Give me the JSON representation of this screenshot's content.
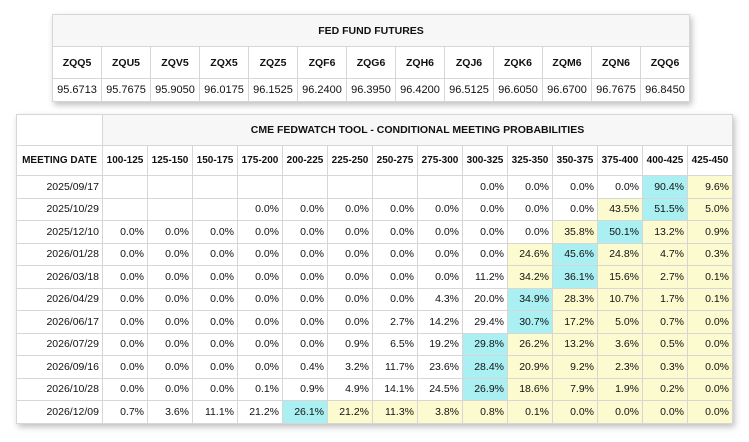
{
  "futures": {
    "title": "FED FUND FUTURES",
    "contracts": [
      "ZQQ5",
      "ZQU5",
      "ZQV5",
      "ZQX5",
      "ZQZ5",
      "ZQF6",
      "ZQG6",
      "ZQH6",
      "ZQJ6",
      "ZQK6",
      "ZQM6",
      "ZQN6",
      "ZQQ6"
    ],
    "prices": [
      "95.6713",
      "95.7675",
      "95.9050",
      "96.0175",
      "96.1525",
      "96.2400",
      "96.3950",
      "96.4200",
      "96.5125",
      "96.6050",
      "96.6700",
      "96.7675",
      "96.8450"
    ]
  },
  "probabilities": {
    "title": "CME FEDWATCH TOOL - CONDITIONAL MEETING PROBABILITIES",
    "date_header": "MEETING DATE",
    "ranges": [
      "100-125",
      "125-150",
      "150-175",
      "175-200",
      "200-225",
      "225-250",
      "250-275",
      "275-300",
      "300-325",
      "325-350",
      "350-375",
      "375-400",
      "400-425",
      "425-450"
    ],
    "colors": {
      "highlight": "#aaf0f2",
      "secondary": "#fbfbcf"
    },
    "rows": [
      {
        "date": "2025/09/17",
        "values": [
          "",
          "",
          "",
          "",
          "",
          "",
          "",
          "",
          "0.0%",
          "0.0%",
          "0.0%",
          "0.0%",
          "90.4%",
          "9.6%"
        ],
        "hi": [
          12
        ],
        "mid": [
          13
        ]
      },
      {
        "date": "2025/10/29",
        "values": [
          "",
          "",
          "",
          "0.0%",
          "0.0%",
          "0.0%",
          "0.0%",
          "0.0%",
          "0.0%",
          "0.0%",
          "0.0%",
          "43.5%",
          "51.5%",
          "5.0%"
        ],
        "hi": [
          12
        ],
        "mid": [
          11,
          13
        ]
      },
      {
        "date": "2025/12/10",
        "values": [
          "0.0%",
          "0.0%",
          "0.0%",
          "0.0%",
          "0.0%",
          "0.0%",
          "0.0%",
          "0.0%",
          "0.0%",
          "0.0%",
          "35.8%",
          "50.1%",
          "13.2%",
          "0.9%"
        ],
        "hi": [
          11
        ],
        "mid": [
          10,
          12,
          13
        ]
      },
      {
        "date": "2026/01/28",
        "values": [
          "0.0%",
          "0.0%",
          "0.0%",
          "0.0%",
          "0.0%",
          "0.0%",
          "0.0%",
          "0.0%",
          "0.0%",
          "24.6%",
          "45.6%",
          "24.8%",
          "4.7%",
          "0.3%"
        ],
        "hi": [
          10
        ],
        "mid": [
          9,
          11,
          12,
          13
        ]
      },
      {
        "date": "2026/03/18",
        "values": [
          "0.0%",
          "0.0%",
          "0.0%",
          "0.0%",
          "0.0%",
          "0.0%",
          "0.0%",
          "0.0%",
          "11.2%",
          "34.2%",
          "36.1%",
          "15.6%",
          "2.7%",
          "0.1%"
        ],
        "hi": [
          10
        ],
        "mid": [
          9,
          11,
          12,
          13
        ]
      },
      {
        "date": "2026/04/29",
        "values": [
          "0.0%",
          "0.0%",
          "0.0%",
          "0.0%",
          "0.0%",
          "0.0%",
          "0.0%",
          "4.3%",
          "20.0%",
          "34.9%",
          "28.3%",
          "10.7%",
          "1.7%",
          "0.1%"
        ],
        "hi": [
          9
        ],
        "mid": [
          10,
          11,
          12,
          13
        ]
      },
      {
        "date": "2026/06/17",
        "values": [
          "0.0%",
          "0.0%",
          "0.0%",
          "0.0%",
          "0.0%",
          "0.0%",
          "2.7%",
          "14.2%",
          "29.4%",
          "30.7%",
          "17.2%",
          "5.0%",
          "0.7%",
          "0.0%"
        ],
        "hi": [
          9
        ],
        "mid": [
          10,
          11,
          12,
          13
        ]
      },
      {
        "date": "2026/07/29",
        "values": [
          "0.0%",
          "0.0%",
          "0.0%",
          "0.0%",
          "0.0%",
          "0.9%",
          "6.5%",
          "19.2%",
          "29.8%",
          "26.2%",
          "13.2%",
          "3.6%",
          "0.5%",
          "0.0%"
        ],
        "hi": [
          8
        ],
        "mid": [
          9,
          10,
          11,
          12,
          13
        ]
      },
      {
        "date": "2026/09/16",
        "values": [
          "0.0%",
          "0.0%",
          "0.0%",
          "0.0%",
          "0.4%",
          "3.2%",
          "11.7%",
          "23.6%",
          "28.4%",
          "20.9%",
          "9.2%",
          "2.3%",
          "0.3%",
          "0.0%"
        ],
        "hi": [
          8
        ],
        "mid": [
          9,
          10,
          11,
          12,
          13
        ]
      },
      {
        "date": "2026/10/28",
        "values": [
          "0.0%",
          "0.0%",
          "0.0%",
          "0.1%",
          "0.9%",
          "4.9%",
          "14.1%",
          "24.5%",
          "26.9%",
          "18.6%",
          "7.9%",
          "1.9%",
          "0.2%",
          "0.0%"
        ],
        "hi": [
          8
        ],
        "mid": [
          9,
          10,
          11,
          12,
          13
        ]
      },
      {
        "date": "2026/12/09",
        "values": [
          "0.7%",
          "3.6%",
          "11.1%",
          "21.2%",
          "26.1%",
          "21.2%",
          "11.3%",
          "3.8%",
          "0.8%",
          "0.1%",
          "0.0%",
          "0.0%",
          "0.0%",
          "0.0%"
        ],
        "hi": [
          4
        ],
        "mid": [
          5,
          6,
          7,
          8,
          9,
          10,
          11,
          12,
          13
        ]
      }
    ]
  }
}
